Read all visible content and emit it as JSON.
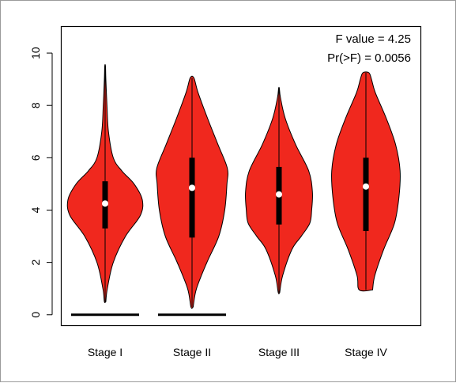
{
  "chart_data": {
    "type": "violin",
    "title": "",
    "xlabel": "",
    "ylabel": "",
    "ylim": [
      -0.4,
      11.0
    ],
    "yticks": [
      0,
      2,
      4,
      6,
      8,
      10
    ],
    "categories": [
      "Stage I",
      "Stage II",
      "Stage III",
      "Stage IV"
    ],
    "fill_color": "#f0281e",
    "annotations": [
      "F value = 4.25",
      "Pr(>F) = 0.0056"
    ],
    "violins": [
      {
        "category": "Stage I",
        "min": 0.5,
        "max": 9.5,
        "q1": 3.3,
        "median": 4.25,
        "q3": 5.1,
        "profile": [
          [
            0.5,
            0.02
          ],
          [
            1.0,
            0.06
          ],
          [
            2.0,
            0.22
          ],
          [
            3.0,
            0.55
          ],
          [
            3.8,
            0.95
          ],
          [
            4.4,
            1.0
          ],
          [
            5.0,
            0.78
          ],
          [
            5.5,
            0.45
          ],
          [
            6.0,
            0.22
          ],
          [
            7.0,
            0.09
          ],
          [
            8.0,
            0.05
          ],
          [
            9.0,
            0.02
          ],
          [
            9.5,
            0.01
          ]
        ],
        "zero_bar": true
      },
      {
        "category": "Stage II",
        "min": 0.3,
        "max": 9.05,
        "q1": 2.95,
        "median": 4.85,
        "q3": 6.0,
        "profile": [
          [
            0.3,
            0.03
          ],
          [
            1.0,
            0.12
          ],
          [
            2.0,
            0.4
          ],
          [
            3.0,
            0.72
          ],
          [
            4.0,
            0.88
          ],
          [
            5.0,
            0.94
          ],
          [
            5.6,
            0.95
          ],
          [
            6.5,
            0.7
          ],
          [
            7.5,
            0.42
          ],
          [
            8.5,
            0.16
          ],
          [
            9.05,
            0.05
          ]
        ],
        "zero_bar": true
      },
      {
        "category": "Stage III",
        "min": 0.85,
        "max": 8.65,
        "q1": 3.45,
        "median": 4.6,
        "q3": 5.65,
        "profile": [
          [
            0.85,
            0.02
          ],
          [
            1.5,
            0.1
          ],
          [
            2.5,
            0.35
          ],
          [
            3.0,
            0.6
          ],
          [
            3.5,
            0.83
          ],
          [
            4.0,
            0.88
          ],
          [
            4.7,
            0.9
          ],
          [
            5.5,
            0.8
          ],
          [
            6.5,
            0.45
          ],
          [
            7.5,
            0.17
          ],
          [
            8.3,
            0.04
          ],
          [
            8.65,
            0.01
          ]
        ],
        "zero_bar": false
      },
      {
        "category": "Stage IV",
        "min": 0.95,
        "max": 9.25,
        "q1": 3.2,
        "median": 4.9,
        "q3": 6.0,
        "profile": [
          [
            0.95,
            0.18
          ],
          [
            1.5,
            0.24
          ],
          [
            2.5,
            0.48
          ],
          [
            3.5,
            0.77
          ],
          [
            4.5,
            0.89
          ],
          [
            5.5,
            0.92
          ],
          [
            6.5,
            0.8
          ],
          [
            7.5,
            0.55
          ],
          [
            8.5,
            0.25
          ],
          [
            9.0,
            0.15
          ],
          [
            9.25,
            0.08
          ]
        ],
        "zero_bar": false
      }
    ]
  }
}
